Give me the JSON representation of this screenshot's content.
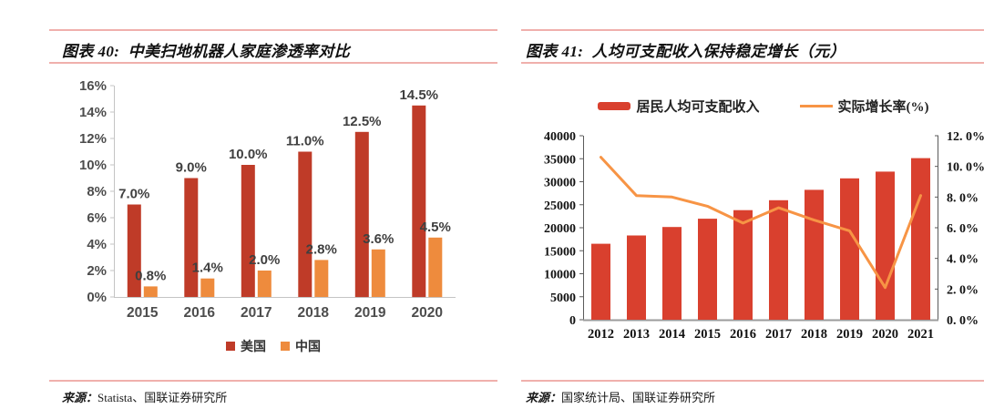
{
  "colors": {
    "rule_pink": "#f0b0ac",
    "us_bar_red": "#bf3b28",
    "cn_bar_orange": "#ee8b3d",
    "income_bar_red": "#d9402e",
    "growth_line_orange": "#f79445",
    "axis_light_gray": "#c4c4c4",
    "axis_dark_gray": "#5a5a5a",
    "text_dark": "#111111"
  },
  "figures": [
    {
      "title": "图表 40:  中美扫地机器人家庭渗透率对比",
      "source_prefix": "来源：",
      "source_text": "Statista、国联证券研究所",
      "chart_data": {
        "type": "bar",
        "title": "中美扫地机器人家庭渗透率对比",
        "categories": [
          "2015",
          "2016",
          "2017",
          "2018",
          "2019",
          "2020"
        ],
        "series": [
          {
            "name": "美国",
            "color": "#bf3b28",
            "values": [
              7.0,
              9.0,
              10.0,
              11.0,
              12.5,
              14.5
            ],
            "labels": [
              "7.0%",
              "9.0%",
              "10.0%",
              "11.0%",
              "12.5%",
              "14.5%"
            ]
          },
          {
            "name": "中国",
            "color": "#ee8b3d",
            "values": [
              0.8,
              1.4,
              2.0,
              2.8,
              3.6,
              4.5
            ],
            "labels": [
              "0.8%",
              "1.4%",
              "2.0%",
              "2.8%",
              "3.6%",
              "4.5%"
            ]
          }
        ],
        "ylim": [
          0,
          16
        ],
        "yticks": {
          "values": [
            0,
            2,
            4,
            6,
            8,
            10,
            12,
            14,
            16
          ],
          "labels": [
            "0%",
            "2%",
            "4%",
            "6%",
            "8%",
            "10%",
            "12%",
            "14%",
            "16%"
          ]
        },
        "legend_position": "bottom",
        "grid": false
      }
    },
    {
      "title": "图表 41:  人均可支配收入保持稳定增长（元）",
      "source_prefix": "来源：",
      "source_text": "国家统计局、国联证券研究所",
      "chart_data": {
        "type": "bar",
        "title": "人均可支配收入保持稳定增长（元）",
        "categories": [
          "2012",
          "2013",
          "2014",
          "2015",
          "2016",
          "2017",
          "2018",
          "2019",
          "2020",
          "2021"
        ],
        "series": [
          {
            "name": "居民人均可支配收入",
            "type": "bar",
            "axis": "left",
            "color": "#d9402e",
            "values": [
              16510,
              18311,
              20167,
              21966,
              23821,
              25974,
              28228,
              30733,
              32189,
              35128
            ]
          },
          {
            "name": "实际增长率(%)",
            "type": "line",
            "axis": "right",
            "color": "#f79445",
            "values": [
              10.6,
              8.1,
              8.0,
              7.4,
              6.3,
              7.3,
              6.5,
              5.8,
              2.1,
              8.1
            ]
          }
        ],
        "ylim_left": [
          0,
          40000
        ],
        "ylim_right": [
          0,
          12
        ],
        "yticks_left": {
          "values": [
            0,
            5000,
            10000,
            15000,
            20000,
            25000,
            30000,
            35000,
            40000
          ],
          "labels": [
            "0",
            "5000",
            "10000",
            "15000",
            "20000",
            "25000",
            "30000",
            "35000",
            "40000"
          ]
        },
        "yticks_right": {
          "values": [
            0,
            2,
            4,
            6,
            8,
            10,
            12
          ],
          "labels": [
            "0. 0%",
            "2. 0%",
            "4. 0%",
            "6. 0%",
            "8. 0%",
            "10. 0%",
            "12. 0%"
          ]
        },
        "legend_position": "top",
        "grid": false
      }
    }
  ]
}
